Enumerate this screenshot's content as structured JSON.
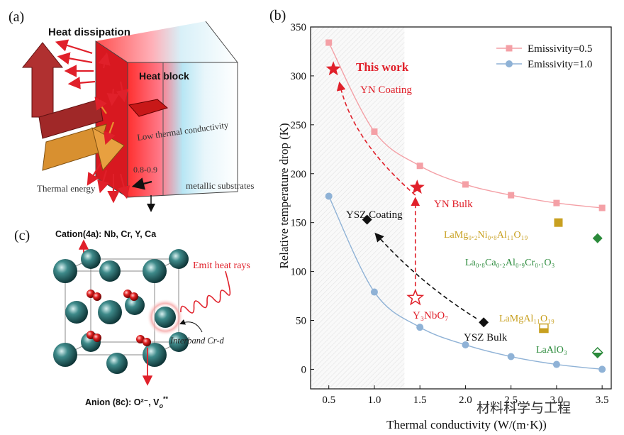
{
  "panel_a": {
    "label": "(a)",
    "heat_dissipation": "Heat dissipation",
    "heat_block": "Heat block",
    "low_thermal_conductivity": "Low thermal conductivity",
    "thermal_energy": "Thermal energy",
    "metallic_substrates": "metallic substrates",
    "emissivity_range": "0.8-0.9"
  },
  "panel_c": {
    "label": "(c)",
    "cation_label": "Cation(4a): Nb, Cr, Y, Ca",
    "emit_heat_rays": "Emit heat rays",
    "interband": "Interband Cr-d",
    "anion_label": "Anion (8c): O²⁻, V",
    "anion_sub": "o",
    "anion_sup": "**"
  },
  "panel_b": {
    "label": "(b)",
    "xlabel": "Thermal conductivity (W/(m·K))",
    "ylabel": "Relative temperature drop (K)",
    "this_work": "This work",
    "annotations": {
      "yn_coating": "YN Coating",
      "yn_bulk": "YN Bulk",
      "ysz_coating": "YSZ Coating",
      "ysz_bulk": "YSZ Bulk",
      "y3nbo7": "Y₃NbO₇",
      "lamgnial": "LaMg₀.₂Ni₀.₈Al₁₁O₁₉",
      "lacaalcr": "La₀.₈Ca₀.₂Al₀.₉Cr₀.₁O₃",
      "lamgal": "LaMgAl₁₁O₁₉",
      "laalo3": "LaAlO₃"
    }
  },
  "colors": {
    "pink": "#f4a0a6",
    "blue": "#8fb2d6",
    "red": "#e0202a",
    "gold": "#c8a020",
    "green": "#2a8a3a",
    "black": "#111111"
  },
  "chart_data": {
    "type": "scatter",
    "xlim": [
      0.3,
      3.6
    ],
    "ylim": [
      -20,
      350
    ],
    "xticks": [
      "0.5",
      "1.0",
      "1.5",
      "2.0",
      "2.5",
      "3.0",
      "3.5"
    ],
    "yticks": [
      "0",
      "50",
      "100",
      "150",
      "200",
      "250",
      "300",
      "350"
    ],
    "shaded_region_x": [
      0.3,
      1.33
    ],
    "legend_position": "top-right",
    "series": [
      {
        "name": "Emissivity=0.5",
        "marker": "square",
        "color": "#f4a0a6",
        "x": [
          0.5,
          1.0,
          1.5,
          2.0,
          2.5,
          3.0,
          3.5
        ],
        "y": [
          334,
          243,
          208,
          189,
          178,
          170,
          165
        ]
      },
      {
        "name": "Emissivity=1.0",
        "marker": "circle",
        "color": "#8fb2d6",
        "x": [
          0.5,
          1.0,
          1.5,
          2.0,
          2.5,
          3.0,
          3.5
        ],
        "y": [
          177,
          79,
          43,
          25,
          13,
          5,
          0
        ]
      }
    ],
    "points": [
      {
        "label": "This work",
        "x": 0.55,
        "y": 307,
        "marker": "star-filled",
        "color": "#e0202a"
      },
      {
        "label": "YN Bulk",
        "x": 1.47,
        "y": 186,
        "marker": "star-filled",
        "color": "#e0202a"
      },
      {
        "label": "Y₃NbO₇",
        "x": 1.45,
        "y": 73,
        "marker": "star-open",
        "color": "#e0202a"
      },
      {
        "label": "YSZ Coating",
        "x": 0.92,
        "y": 153,
        "marker": "diamond",
        "color": "#111111"
      },
      {
        "label": "YSZ Bulk",
        "x": 2.2,
        "y": 48,
        "marker": "diamond",
        "color": "#111111"
      },
      {
        "label": "LaMg₀.₂Ni₀.₈Al₁₁O₁₉",
        "x": 3.02,
        "y": 150,
        "marker": "square",
        "color": "#c8a020"
      },
      {
        "label": "LaMgAl₁₁O₁₉",
        "x": 2.86,
        "y": 42,
        "marker": "square-half",
        "color": "#c8a020"
      },
      {
        "label": "La₀.₈Ca₀.₂Al₀.₉Cr₀.₁O₃",
        "x": 3.45,
        "y": 134,
        "marker": "diamond",
        "color": "#2a8a3a"
      },
      {
        "label": "LaAlO₃",
        "x": 3.45,
        "y": 17,
        "marker": "diamond-half",
        "color": "#2a8a3a"
      }
    ]
  },
  "watermark": "材料科学与工程"
}
